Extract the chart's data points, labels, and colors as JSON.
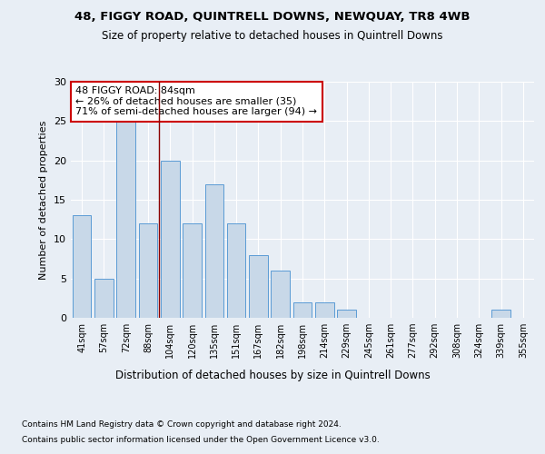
{
  "title1": "48, FIGGY ROAD, QUINTRELL DOWNS, NEWQUAY, TR8 4WB",
  "title2": "Size of property relative to detached houses in Quintrell Downs",
  "xlabel": "Distribution of detached houses by size in Quintrell Downs",
  "ylabel": "Number of detached properties",
  "footnote1": "Contains HM Land Registry data © Crown copyright and database right 2024.",
  "footnote2": "Contains public sector information licensed under the Open Government Licence v3.0.",
  "categories": [
    "41sqm",
    "57sqm",
    "72sqm",
    "88sqm",
    "104sqm",
    "120sqm",
    "135sqm",
    "151sqm",
    "167sqm",
    "182sqm",
    "198sqm",
    "214sqm",
    "229sqm",
    "245sqm",
    "261sqm",
    "277sqm",
    "292sqm",
    "308sqm",
    "324sqm",
    "339sqm",
    "355sqm"
  ],
  "values": [
    13,
    5,
    25,
    12,
    20,
    12,
    17,
    12,
    8,
    6,
    2,
    2,
    1,
    0,
    0,
    0,
    0,
    0,
    0,
    1,
    0
  ],
  "bar_color": "#c8d8e8",
  "bar_edge_color": "#5b9bd5",
  "highlight_index": 3,
  "highlight_line_color": "#8b0000",
  "ylim": [
    0,
    30
  ],
  "yticks": [
    0,
    5,
    10,
    15,
    20,
    25,
    30
  ],
  "annotation_text": "48 FIGGY ROAD: 84sqm\n← 26% of detached houses are smaller (35)\n71% of semi-detached houses are larger (94) →",
  "annotation_box_color": "#ffffff",
  "annotation_box_edge": "#cc0000",
  "bg_color": "#e8eef5",
  "plot_bg_color": "#e8eef5"
}
